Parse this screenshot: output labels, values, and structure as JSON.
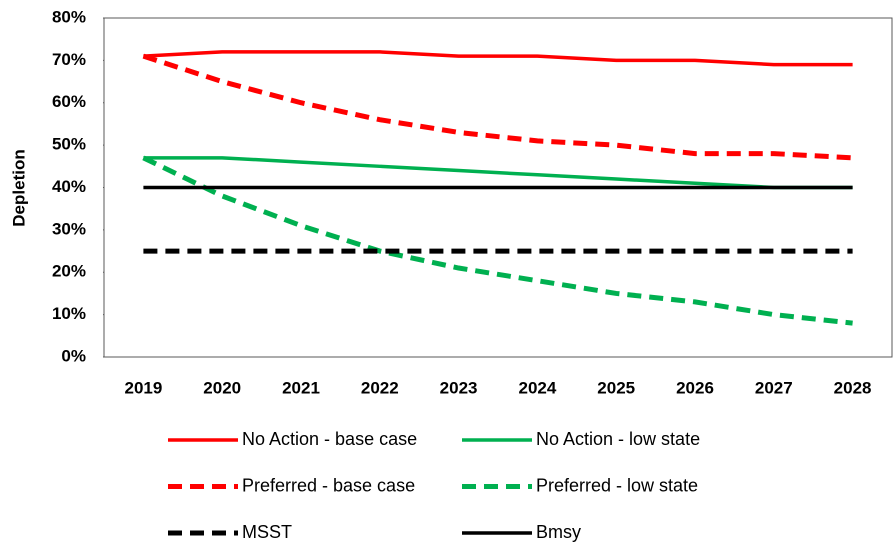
{
  "chart_data": {
    "type": "line",
    "y_axis_label": "Depletion",
    "categories": [
      "2019",
      "2020",
      "2021",
      "2022",
      "2023",
      "2024",
      "2025",
      "2026",
      "2027",
      "2028"
    ],
    "ylim": [
      0,
      80
    ],
    "yticks": [
      {
        "value": 0,
        "label": "0%"
      },
      {
        "value": 10,
        "label": "10%"
      },
      {
        "value": 20,
        "label": "20%"
      },
      {
        "value": 30,
        "label": "30%"
      },
      {
        "value": 40,
        "label": "40%"
      },
      {
        "value": 50,
        "label": "50%"
      },
      {
        "value": 60,
        "label": "60%"
      },
      {
        "value": 70,
        "label": "70%"
      },
      {
        "value": 80,
        "label": "80%"
      }
    ],
    "series": [
      {
        "name": "No Action - base case",
        "color": "#ff0000",
        "dashed": false,
        "values": [
          71,
          72,
          72,
          72,
          71,
          71,
          70,
          70,
          69,
          69
        ]
      },
      {
        "name": "No Action - low state",
        "color": "#00b050",
        "dashed": false,
        "values": [
          47,
          47,
          46,
          45,
          44,
          43,
          42,
          41,
          40,
          40
        ]
      },
      {
        "name": "Preferred - base case",
        "color": "#ff0000",
        "dashed": true,
        "values": [
          71,
          65,
          60,
          56,
          53,
          51,
          50,
          48,
          48,
          47
        ]
      },
      {
        "name": "Preferred - low state",
        "color": "#00b050",
        "dashed": true,
        "values": [
          47,
          38,
          31,
          25,
          21,
          18,
          15,
          13,
          10,
          8
        ]
      },
      {
        "name": "MSST",
        "color": "#000000",
        "dashed": true,
        "values": [
          25,
          25,
          25,
          25,
          25,
          25,
          25,
          25,
          25,
          25
        ]
      },
      {
        "name": "Bmsy",
        "color": "#000000",
        "dashed": false,
        "values": [
          40,
          40,
          40,
          40,
          40,
          40,
          40,
          40,
          40,
          40
        ]
      }
    ]
  }
}
